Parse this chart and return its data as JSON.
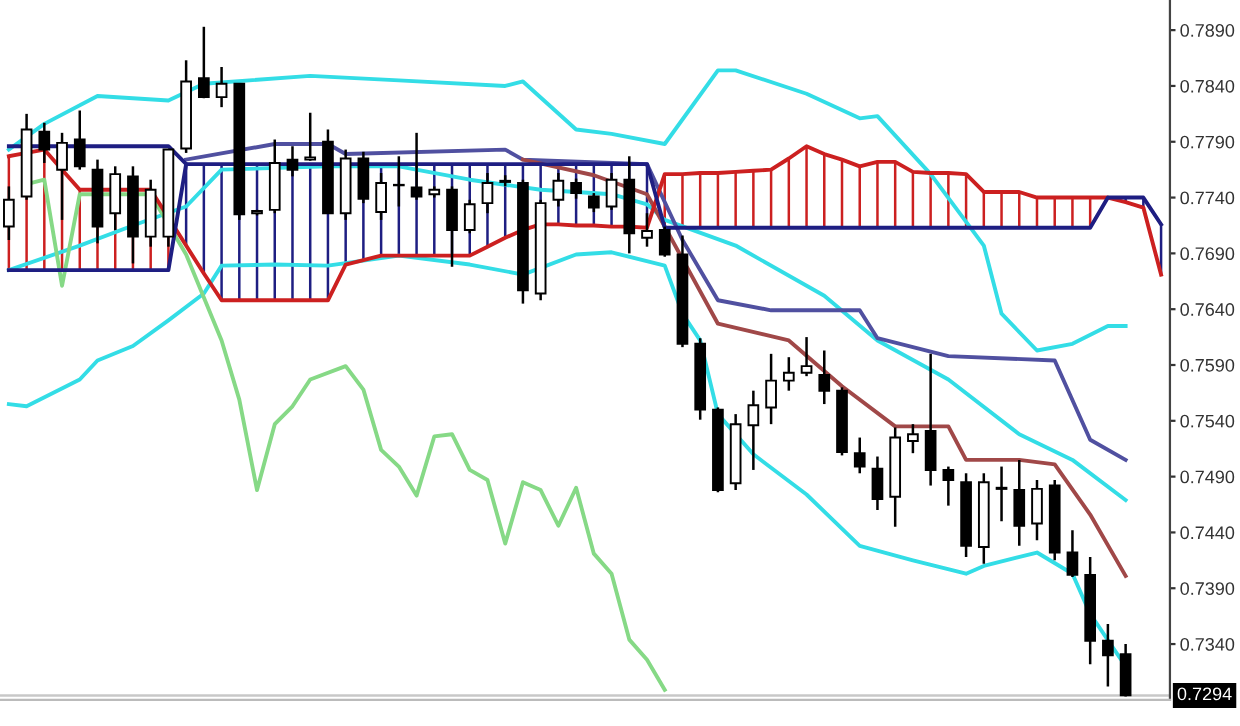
{
  "chart_data": {
    "type": "candlestick",
    "categories": [
      null,
      null,
      null,
      null,
      null,
      null,
      null,
      null,
      null,
      null,
      null,
      null,
      null,
      null,
      null,
      null,
      null,
      null,
      null,
      null,
      null,
      null,
      null,
      null,
      null,
      null,
      null,
      null,
      null,
      null,
      null,
      null,
      null,
      null,
      null,
      null,
      null,
      null,
      null,
      null,
      null,
      null,
      null,
      null,
      null,
      null,
      null,
      null,
      null,
      null,
      null,
      null,
      null,
      null,
      null,
      null,
      null,
      null,
      null,
      null,
      null,
      null,
      null,
      null,
      null,
      null
    ],
    "ohlc": [
      [
        0.7714,
        0.775,
        0.7702,
        0.7738
      ],
      [
        0.7741,
        0.7815,
        0.7738,
        0.7801
      ],
      [
        0.7799,
        0.7807,
        0.7771,
        0.7783
      ],
      [
        0.7765,
        0.7798,
        0.772,
        0.7789
      ],
      [
        0.7792,
        0.7818,
        0.7765,
        0.7768
      ],
      [
        0.7765,
        0.7774,
        0.7699,
        0.7714
      ],
      [
        0.7726,
        0.7768,
        0.7711,
        0.7761
      ],
      [
        0.7759,
        0.7768,
        0.7681,
        0.7705
      ],
      [
        0.7705,
        0.7756,
        0.7696,
        0.7747
      ],
      [
        0.7705,
        0.7783,
        0.7696,
        0.7783
      ],
      [
        0.7784,
        0.7863,
        0.778,
        0.7844
      ],
      [
        0.7847,
        0.7893,
        0.7829,
        0.783
      ],
      [
        0.783,
        0.7857,
        0.7821,
        0.7842
      ],
      [
        0.7842,
        0.7842,
        0.772,
        0.7725
      ],
      [
        0.7726,
        0.7729,
        0.7724,
        0.7728
      ],
      [
        0.7729,
        0.7792,
        0.7726,
        0.7771
      ],
      [
        0.7774,
        0.7786,
        0.7759,
        0.7765
      ],
      [
        0.7774,
        0.7816,
        0.7773,
        0.7776
      ],
      [
        0.779,
        0.7801,
        0.7726,
        0.7726
      ],
      [
        0.7726,
        0.7783,
        0.772,
        0.7775
      ],
      [
        0.7775,
        0.7781,
        0.7735,
        0.7739
      ],
      [
        0.7727,
        0.7762,
        0.772,
        0.7753
      ],
      [
        0.7751,
        0.7777,
        0.7732,
        0.7751
      ],
      [
        0.7749,
        0.7798,
        0.7738,
        0.7741
      ],
      [
        0.7743,
        0.775,
        0.774,
        0.7747
      ],
      [
        0.7747,
        0.775,
        0.7678,
        0.7711
      ],
      [
        0.7711,
        0.7738,
        0.7708,
        0.7734
      ],
      [
        0.7735,
        0.7762,
        0.7726,
        0.7753
      ],
      [
        0.7754,
        0.776,
        0.775,
        0.7755
      ],
      [
        0.7753,
        0.7756,
        0.7645,
        0.7657
      ],
      [
        0.7654,
        0.7738,
        0.7648,
        0.7735
      ],
      [
        0.7738,
        0.7762,
        0.7732,
        0.7755
      ],
      [
        0.7753,
        0.7757,
        0.7739,
        0.7744
      ],
      [
        0.7741,
        0.7744,
        0.7727,
        0.7731
      ],
      [
        0.7732,
        0.7762,
        0.7729,
        0.7756
      ],
      [
        0.7756,
        0.7777,
        0.769,
        0.7708
      ],
      [
        0.7704,
        0.7726,
        0.7696,
        0.771
      ],
      [
        0.7711,
        0.7714,
        0.7687,
        0.7689
      ],
      [
        0.7689,
        0.7706,
        0.7606,
        0.7609
      ],
      [
        0.7609,
        0.7614,
        0.7541,
        0.755
      ],
      [
        0.755,
        0.7552,
        0.7476,
        0.7478
      ],
      [
        0.7484,
        0.7546,
        0.7478,
        0.7537
      ],
      [
        0.7536,
        0.7567,
        0.7496,
        0.7554
      ],
      [
        0.7552,
        0.76,
        0.7537,
        0.7576
      ],
      [
        0.7576,
        0.7597,
        0.7567,
        0.7583
      ],
      [
        0.7583,
        0.7615,
        0.758,
        0.7589
      ],
      [
        0.7581,
        0.7603,
        0.7555,
        0.7567
      ],
      [
        0.7567,
        0.757,
        0.7509,
        0.7512
      ],
      [
        0.7511,
        0.7525,
        0.7493,
        0.7499
      ],
      [
        0.7497,
        0.7508,
        0.746,
        0.747
      ],
      [
        0.7472,
        0.7534,
        0.7445,
        0.7525
      ],
      [
        0.7522,
        0.7537,
        0.7511,
        0.7528
      ],
      [
        0.7531,
        0.76,
        0.7482,
        0.7496
      ],
      [
        0.7496,
        0.7499,
        0.7464,
        0.7487
      ],
      [
        0.7485,
        0.7493,
        0.7418,
        0.7428
      ],
      [
        0.7427,
        0.7493,
        0.7412,
        0.7485
      ],
      [
        0.748,
        0.7499,
        0.745,
        0.7479
      ],
      [
        0.7478,
        0.7505,
        0.7428,
        0.7446
      ],
      [
        0.7448,
        0.7487,
        0.7433,
        0.7479
      ],
      [
        0.7482,
        0.7487,
        0.7415,
        0.7422
      ],
      [
        0.7422,
        0.7442,
        0.74,
        0.7402
      ],
      [
        0.7402,
        0.7418,
        0.7322,
        0.7343
      ],
      [
        0.7343,
        0.7358,
        0.7302,
        0.733
      ],
      [
        0.7331,
        0.734,
        0.7293,
        0.7294
      ],
      null,
      null
    ],
    "series": [
      {
        "type": "line",
        "color": "#33dde6",
        "values": [
          0.7783,
          null,
          0.7806,
          null,
          null,
          0.7831,
          null,
          null,
          null,
          0.7827,
          null,
          0.7842,
          null,
          null,
          null,
          null,
          null,
          0.7849,
          null,
          null,
          null,
          null,
          0.7845,
          null,
          null,
          null,
          null,
          null,
          0.784,
          0.7844,
          null,
          null,
          0.7801,
          null,
          0.7797,
          null,
          null,
          0.7788,
          null,
          null,
          0.7854,
          0.7854,
          null,
          null,
          null,
          0.7833,
          null,
          null,
          0.7811,
          0.7813,
          null,
          null,
          0.7761,
          null,
          null,
          0.7697,
          0.7636,
          null,
          0.7603,
          null,
          0.7609,
          null,
          0.7625,
          0.7625,
          null,
          null
        ]
      },
      {
        "type": "line",
        "color": "#33dde6",
        "values": [
          0.7675,
          null,
          null,
          null,
          0.7697,
          null,
          null,
          0.7715,
          null,
          null,
          0.7732,
          null,
          0.7765,
          null,
          null,
          null,
          null,
          null,
          0.7768,
          null,
          null,
          null,
          0.7768,
          null,
          null,
          null,
          0.7756,
          null,
          null,
          null,
          0.7747,
          null,
          null,
          null,
          0.7743,
          null,
          0.7734,
          0.772,
          null,
          null,
          null,
          0.7697,
          null,
          null,
          null,
          null,
          0.7652,
          null,
          null,
          0.7612,
          null,
          null,
          null,
          0.7577,
          null,
          null,
          null,
          0.7528,
          null,
          null,
          0.7505,
          null,
          null,
          0.7469,
          null,
          null
        ]
      },
      {
        "type": "line",
        "color": "#33dde6",
        "values": [
          0.7555,
          0.7553,
          null,
          null,
          0.7577,
          0.7594,
          null,
          0.7607,
          null,
          0.763,
          null,
          0.7654,
          0.7679,
          null,
          null,
          0.768,
          null,
          null,
          0.7679,
          null,
          null,
          null,
          0.7688,
          null,
          null,
          null,
          0.768,
          null,
          null,
          0.7671,
          null,
          null,
          0.7689,
          null,
          0.7691,
          null,
          null,
          0.7679,
          0.7636,
          0.7612,
          0.7546,
          null,
          0.751,
          null,
          null,
          0.7474,
          null,
          null,
          0.7428,
          null,
          null,
          0.7415,
          null,
          null,
          0.7403,
          0.741,
          null,
          null,
          0.7422,
          null,
          0.7403,
          0.7367,
          null,
          0.732,
          null,
          null
        ]
      },
      {
        "type": "line",
        "color": "#5050a0",
        "values": [
          null,
          null,
          null,
          null,
          null,
          null,
          null,
          null,
          null,
          null,
          0.7774,
          null,
          null,
          null,
          null,
          0.7788,
          null,
          null,
          0.7788,
          0.7779,
          null,
          null,
          null,
          null,
          null,
          null,
          null,
          null,
          0.7783,
          0.7774,
          null,
          null,
          null,
          null,
          null,
          null,
          0.777,
          null,
          0.7702,
          null,
          0.7648,
          null,
          null,
          0.7639,
          null,
          null,
          null,
          null,
          0.7639,
          0.7614,
          null,
          null,
          null,
          0.7598,
          null,
          null,
          null,
          null,
          null,
          0.7594,
          null,
          0.7523,
          null,
          0.7505,
          null,
          null
        ]
      },
      {
        "type": "line",
        "color": "#a04848",
        "values": [
          null,
          null,
          null,
          null,
          null,
          null,
          null,
          null,
          null,
          null,
          null,
          null,
          null,
          null,
          null,
          null,
          null,
          null,
          null,
          null,
          null,
          null,
          null,
          null,
          null,
          null,
          null,
          null,
          null,
          0.7774,
          null,
          null,
          null,
          0.776,
          null,
          null,
          0.7743,
          null,
          null,
          null,
          0.7627,
          null,
          null,
          null,
          0.7612,
          null,
          null,
          0.7571,
          null,
          null,
          0.7535,
          null,
          null,
          0.7535,
          0.7505,
          null,
          null,
          0.7505,
          null,
          0.7501,
          null,
          0.7456,
          null,
          0.7401,
          null,
          null
        ]
      },
      {
        "type": "line",
        "color": "#86d986",
        "values": [
          null,
          0.7752,
          0.7756,
          0.7661,
          0.7743,
          null,
          null,
          null,
          0.7743,
          null,
          0.7689,
          null,
          0.7612,
          0.7559,
          0.7478,
          0.7537,
          0.7553,
          0.7577,
          null,
          0.7589,
          0.7568,
          0.7514,
          0.7499,
          0.7473,
          0.7526,
          0.7528,
          0.7496,
          0.7487,
          0.743,
          0.7485,
          0.7478,
          0.7446,
          0.748,
          0.7421,
          0.7403,
          0.7344,
          0.7326,
          0.7299,
          null,
          null,
          null,
          null,
          null,
          null,
          null,
          null,
          null,
          null,
          null,
          null,
          null,
          null,
          null,
          null,
          null,
          null,
          null,
          null,
          null,
          null,
          null,
          null,
          null,
          null,
          null,
          null
        ]
      },
      {
        "type": "line",
        "color": "#cc2020",
        "values": [
          0.7777,
          0.778,
          0.7783,
          0.7765,
          0.7747,
          0.7747,
          0.7747,
          0.7747,
          0.7747,
          0.7722,
          0.7697,
          0.7672,
          0.7648,
          0.7648,
          0.7648,
          0.7648,
          0.7648,
          0.7648,
          0.7648,
          0.768,
          0.7684,
          0.7688,
          0.7688,
          0.7688,
          0.7688,
          0.7688,
          0.7688,
          0.7696,
          0.7704,
          0.7711,
          0.7716,
          0.7716,
          0.7715,
          0.7715,
          0.7714,
          0.7714,
          0.7713,
          0.7761,
          0.7761,
          0.7762,
          0.7762,
          0.7763,
          0.7764,
          0.7765,
          0.7775,
          0.7786,
          0.7779,
          0.7774,
          0.7768,
          0.7772,
          0.7772,
          0.7763,
          0.7762,
          0.7762,
          0.7761,
          0.7745,
          0.7745,
          0.7745,
          0.774,
          0.774,
          0.774,
          0.774,
          0.774,
          0.7736,
          0.7731,
          0.7671
        ]
      },
      {
        "type": "line",
        "color": "#1e1e82",
        "values": [
          0.7675,
          0.7675,
          0.7675,
          0.7675,
          0.7675,
          0.7675,
          0.7675,
          0.7675,
          0.7675,
          0.7675,
          0.777,
          0.777,
          0.777,
          0.777,
          0.777,
          0.777,
          0.777,
          0.777,
          0.777,
          0.777,
          0.777,
          0.777,
          0.777,
          0.777,
          0.777,
          0.777,
          0.777,
          0.777,
          0.777,
          0.777,
          0.777,
          0.777,
          0.777,
          0.777,
          0.777,
          0.777,
          0.777,
          0.7713,
          0.7713,
          0.7713,
          0.7713,
          0.7713,
          0.7713,
          0.7713,
          0.7713,
          0.7713,
          0.7713,
          0.7713,
          0.7713,
          0.7713,
          0.7713,
          0.7713,
          0.7713,
          0.7713,
          0.7713,
          0.7713,
          0.7713,
          0.7713,
          0.7713,
          0.7713,
          0.7713,
          0.7713,
          0.774,
          0.774,
          0.774,
          0.7716
        ]
      },
      {
        "type": "line",
        "color": "#1e1e82",
        "values": [
          0.7786,
          null,
          null,
          null,
          null,
          null,
          null,
          null,
          null,
          0.7786,
          0.777,
          null,
          null,
          null,
          null,
          null,
          null,
          null,
          null,
          null,
          null,
          null,
          null,
          null,
          null,
          null,
          null,
          null,
          null,
          null,
          null,
          null,
          null,
          null,
          null,
          null,
          null,
          null,
          null,
          null,
          null,
          null,
          null,
          null,
          null,
          null,
          null,
          null,
          null,
          null,
          null,
          null,
          null,
          null,
          null,
          null,
          null,
          null,
          null,
          null,
          null,
          null,
          null,
          null,
          null,
          null
        ]
      }
    ],
    "ylim": [
      0.729,
      0.7917
    ],
    "yticks": [
      {
        "value": 0.789,
        "label": "0.7890"
      },
      {
        "value": 0.784,
        "label": "0.7840"
      },
      {
        "value": 0.779,
        "label": "0.7790"
      },
      {
        "value": 0.774,
        "label": "0.7740"
      },
      {
        "value": 0.769,
        "label": "0.7690"
      },
      {
        "value": 0.764,
        "label": "0.7640"
      },
      {
        "value": 0.759,
        "label": "0.7590"
      },
      {
        "value": 0.754,
        "label": "0.7540"
      },
      {
        "value": 0.749,
        "label": "0.7490"
      },
      {
        "value": 0.744,
        "label": "0.7440"
      },
      {
        "value": 0.739,
        "label": "0.7390"
      },
      {
        "value": 0.734,
        "label": "0.7340"
      }
    ],
    "ref_lines": [
      {
        "axis": "y",
        "value": 0.7294,
        "label": "0.7294",
        "color": "#c8c8c8"
      }
    ],
    "tick_labels": "y"
  }
}
